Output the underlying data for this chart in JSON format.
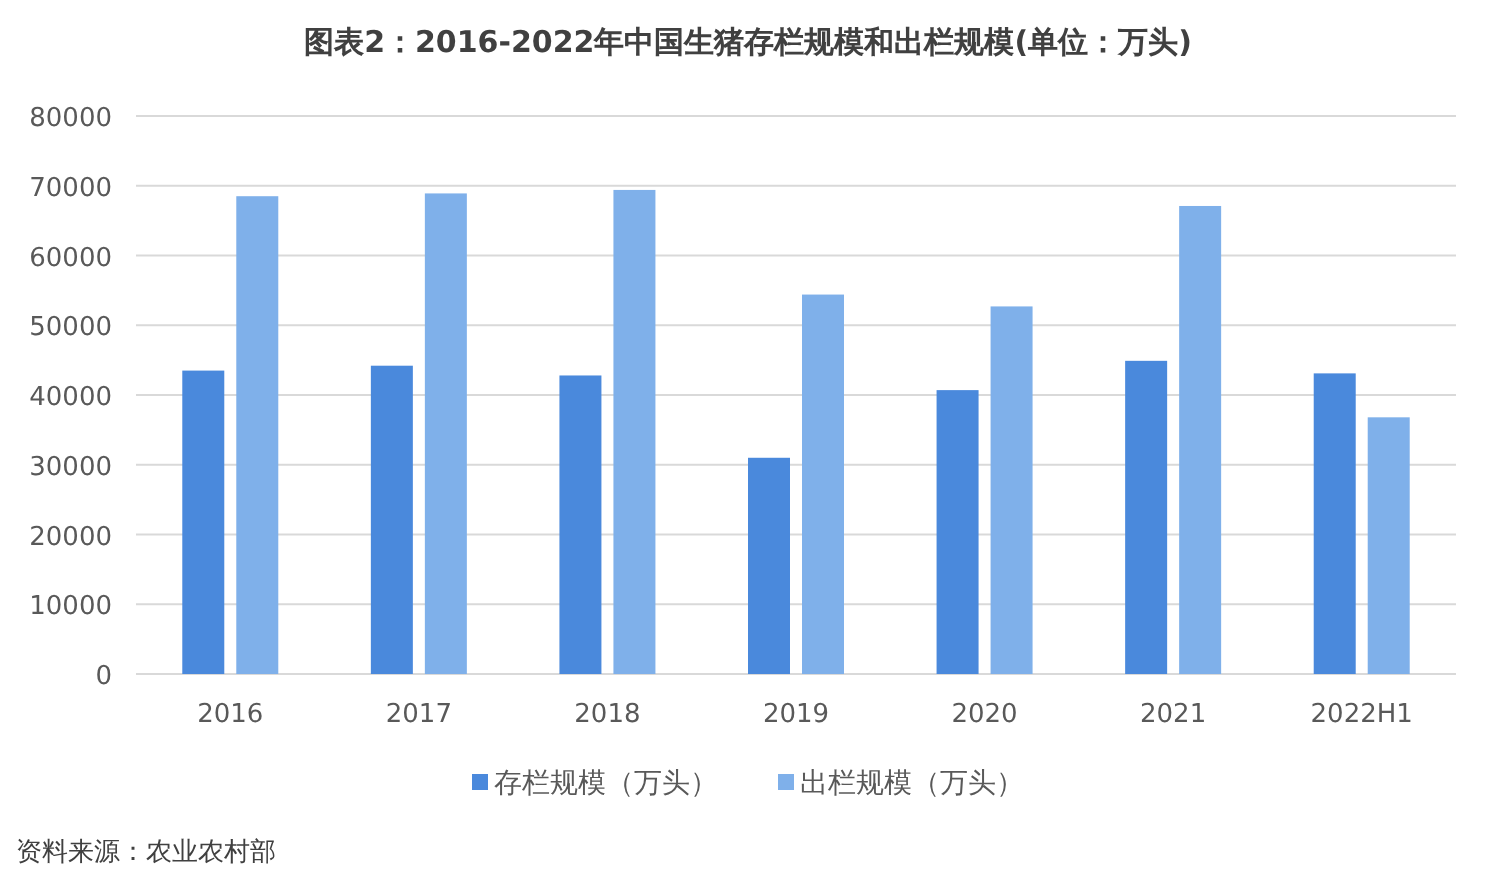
{
  "chart_data": {
    "type": "bar",
    "title": "图表2：2016-2022年中国生猪存栏规模和出栏规模(单位：万头)",
    "categories": [
      "2016",
      "2017",
      "2018",
      "2019",
      "2020",
      "2021",
      "2022H1"
    ],
    "series": [
      {
        "name": "存栏规模（万头）",
        "color": "#4a89dc",
        "values": [
          43500,
          44200,
          42800,
          31000,
          40700,
          44900,
          43100
        ]
      },
      {
        "name": "出栏规模（万头）",
        "color": "#7fb0ea",
        "values": [
          68500,
          68900,
          69400,
          54400,
          52700,
          67100,
          36800
        ]
      }
    ],
    "ylim": [
      0,
      80000
    ],
    "yticks": [
      0,
      10000,
      20000,
      30000,
      40000,
      50000,
      60000,
      70000,
      80000
    ],
    "grid": "y",
    "legend": "bottom",
    "annotations": [
      "资料来源：农业农村部"
    ]
  }
}
